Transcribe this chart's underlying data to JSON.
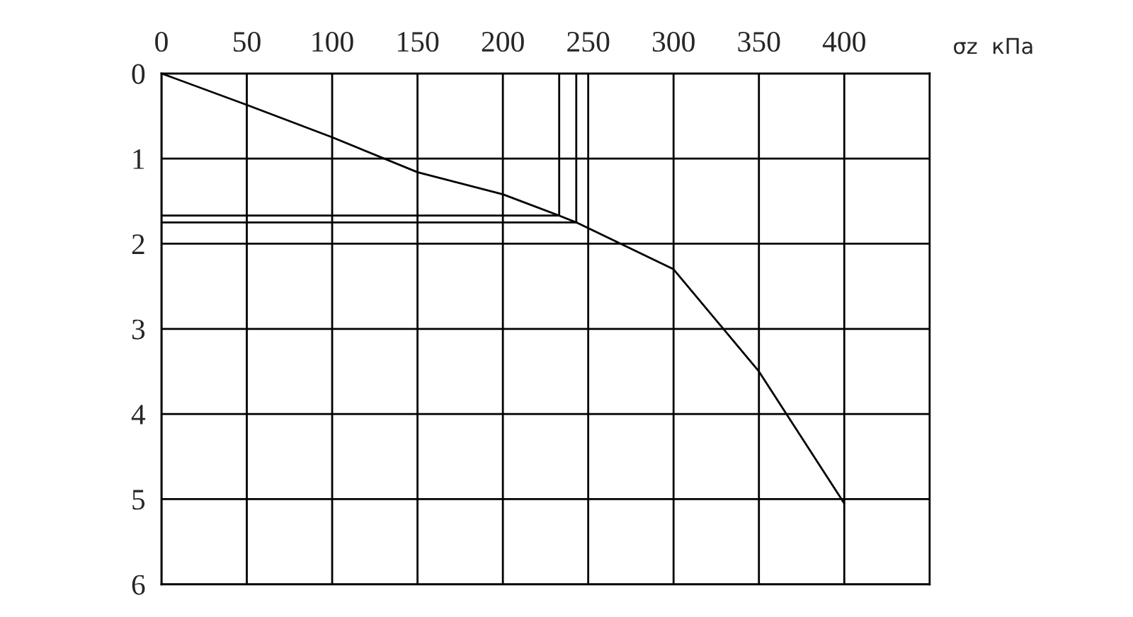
{
  "chart_data": {
    "type": "line",
    "xlabel": "σz  кПа",
    "series": [
      {
        "color": "#000000",
        "x": [
          0,
          50,
          100,
          150,
          200,
          233,
          243,
          300,
          350,
          400
        ],
        "values": [
          0,
          0.37,
          0.75,
          1.16,
          1.42,
          1.67,
          1.75,
          2.3,
          3.5,
          5.05
        ]
      },
      {
        "color": "#000000",
        "x": [
          0,
          233,
          233
        ],
        "values": [
          1.67,
          1.67,
          0
        ]
      },
      {
        "color": "#000000",
        "x": [
          0,
          243,
          243
        ],
        "values": [
          1.75,
          1.75,
          0
        ]
      }
    ],
    "xlim": [
      0,
      450
    ],
    "ylim": [
      6,
      0
    ],
    "xticks": [
      0,
      50,
      100,
      150,
      200,
      250,
      300,
      350,
      400
    ],
    "yticks": [
      0,
      1,
      2,
      3,
      4,
      5,
      6
    ],
    "grid": true,
    "marker": "none",
    "line_style": "solid",
    "legend": false
  }
}
